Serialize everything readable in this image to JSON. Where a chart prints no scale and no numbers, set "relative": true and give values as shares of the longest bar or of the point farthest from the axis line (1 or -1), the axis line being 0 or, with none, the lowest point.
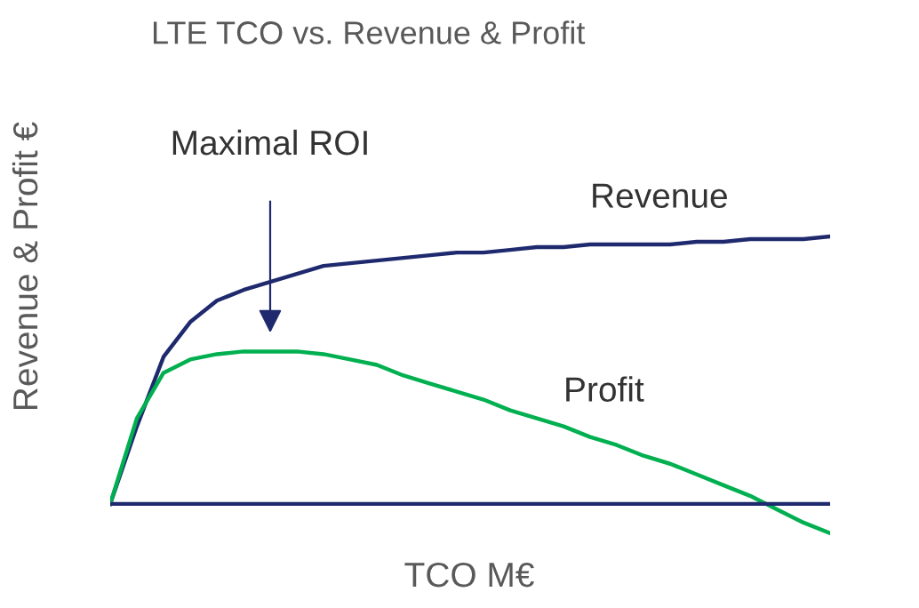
{
  "chart_data": {
    "type": "line",
    "title": "LTE TCO vs. Revenue & Profit",
    "xlabel": "TCO M€",
    "ylabel": "Revenue & Profit €",
    "relative": true,
    "marker": "none",
    "ref_lines": [
      {
        "axis": "y",
        "value": 0,
        "color": "#1f2a6e",
        "line_style": "solid"
      }
    ],
    "line_style": "solid",
    "categories": [
      null,
      null,
      null,
      null,
      null,
      null,
      null,
      null,
      null,
      null,
      null,
      null,
      null,
      null,
      null,
      null,
      null,
      null,
      null,
      null,
      null,
      null,
      null,
      null,
      null,
      null,
      null,
      null
    ],
    "series": [
      {
        "name": "Revenue",
        "color": "#1f2a6e",
        "values": [
          0,
          0.29,
          0.55,
          0.68,
          0.76,
          0.8,
          0.83,
          0.86,
          0.89,
          0.9,
          0.91,
          0.92,
          0.93,
          0.94,
          0.94,
          0.95,
          0.96,
          0.96,
          0.97,
          0.97,
          0.97,
          0.97,
          0.98,
          0.98,
          0.99,
          0.99,
          0.99,
          1
        ]
      },
      {
        "name": "Profit",
        "color": "#00b050",
        "values": [
          0,
          0.32,
          0.49,
          0.54,
          0.56,
          0.57,
          0.57,
          0.57,
          0.56,
          0.54,
          0.52,
          0.48,
          0.45,
          0.42,
          0.39,
          0.35,
          0.32,
          0.29,
          0.25,
          0.22,
          0.18,
          0.15,
          0.11,
          0.07,
          0.03,
          -0.02,
          -0.07,
          -0.11
        ]
      }
    ],
    "annotations": [
      "Maximal ROI"
    ]
  }
}
